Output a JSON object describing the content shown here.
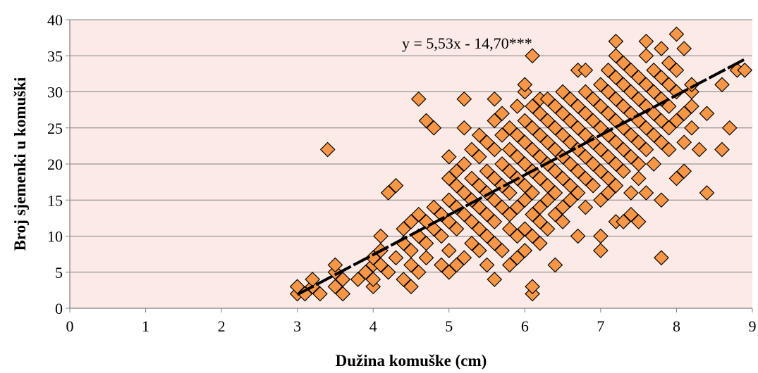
{
  "chart_data": {
    "type": "scatter",
    "title": "",
    "xlabel": "Dužina komuške (cm)",
    "ylabel": "Broj sjemenki u komuški",
    "xlim": [
      0,
      9
    ],
    "ylim": [
      0,
      40
    ],
    "xticks": [
      "0",
      "1",
      "2",
      "3",
      "4",
      "5",
      "6",
      "7",
      "8",
      "9"
    ],
    "yticks": [
      "0",
      "5",
      "10",
      "15",
      "20",
      "25",
      "30",
      "35",
      "40"
    ],
    "grid": "horizontal",
    "legend": "none",
    "colors": {
      "plot_background": "#fbeae6",
      "marker_fill": "#f79646",
      "marker_stroke": "#000000",
      "gridline": "#808080",
      "trendline": "#000000"
    },
    "trendline": {
      "equation": "y = 5,53x - 14,70***",
      "slope": 5.53,
      "intercept": -14.7,
      "x_range": [
        3.0,
        8.9
      ]
    },
    "series": [
      {
        "marker": "diamond",
        "points": [
          [
            3.0,
            2
          ],
          [
            3.0,
            3
          ],
          [
            3.1,
            2
          ],
          [
            3.2,
            3
          ],
          [
            3.2,
            4
          ],
          [
            3.3,
            2
          ],
          [
            3.4,
            22
          ],
          [
            3.5,
            3
          ],
          [
            3.5,
            5
          ],
          [
            3.5,
            6
          ],
          [
            3.6,
            2
          ],
          [
            3.6,
            4
          ],
          [
            3.8,
            4
          ],
          [
            3.9,
            5
          ],
          [
            4.0,
            3
          ],
          [
            4.0,
            4
          ],
          [
            4.0,
            6
          ],
          [
            4.0,
            7
          ],
          [
            4.1,
            8
          ],
          [
            4.1,
            10
          ],
          [
            4.1,
            6
          ],
          [
            4.2,
            5
          ],
          [
            4.2,
            16
          ],
          [
            4.3,
            17
          ],
          [
            4.3,
            7
          ],
          [
            4.4,
            4
          ],
          [
            4.4,
            9
          ],
          [
            4.4,
            11
          ],
          [
            4.5,
            3
          ],
          [
            4.5,
            6
          ],
          [
            4.5,
            8
          ],
          [
            4.5,
            12
          ],
          [
            4.6,
            5
          ],
          [
            4.6,
            10
          ],
          [
            4.6,
            29
          ],
          [
            4.6,
            13
          ],
          [
            4.7,
            26
          ],
          [
            4.7,
            7
          ],
          [
            4.7,
            9
          ],
          [
            4.7,
            12
          ],
          [
            4.8,
            25
          ],
          [
            4.8,
            11
          ],
          [
            4.8,
            14
          ],
          [
            4.9,
            6
          ],
          [
            4.9,
            10
          ],
          [
            4.9,
            13
          ],
          [
            5.0,
            5
          ],
          [
            5.0,
            8
          ],
          [
            5.0,
            12
          ],
          [
            5.0,
            15
          ],
          [
            5.0,
            18
          ],
          [
            5.0,
            21
          ],
          [
            5.1,
            6
          ],
          [
            5.1,
            11
          ],
          [
            5.1,
            14
          ],
          [
            5.1,
            17
          ],
          [
            5.1,
            19
          ],
          [
            5.2,
            7
          ],
          [
            5.2,
            13
          ],
          [
            5.2,
            16
          ],
          [
            5.2,
            20
          ],
          [
            5.2,
            25
          ],
          [
            5.2,
            29
          ],
          [
            5.3,
            9
          ],
          [
            5.3,
            12
          ],
          [
            5.3,
            15
          ],
          [
            5.3,
            18
          ],
          [
            5.3,
            22
          ],
          [
            5.4,
            8
          ],
          [
            5.4,
            11
          ],
          [
            5.4,
            14
          ],
          [
            5.4,
            17
          ],
          [
            5.4,
            21
          ],
          [
            5.4,
            24
          ],
          [
            5.5,
            6
          ],
          [
            5.5,
            10
          ],
          [
            5.5,
            13
          ],
          [
            5.5,
            16
          ],
          [
            5.5,
            19
          ],
          [
            5.5,
            23
          ],
          [
            5.6,
            4
          ],
          [
            5.6,
            9
          ],
          [
            5.6,
            12
          ],
          [
            5.6,
            15
          ],
          [
            5.6,
            18
          ],
          [
            5.6,
            22
          ],
          [
            5.6,
            26
          ],
          [
            5.6,
            29
          ],
          [
            5.7,
            8
          ],
          [
            5.7,
            14
          ],
          [
            5.7,
            17
          ],
          [
            5.7,
            20
          ],
          [
            5.7,
            24
          ],
          [
            5.7,
            27
          ],
          [
            5.8,
            6
          ],
          [
            5.8,
            11
          ],
          [
            5.8,
            13
          ],
          [
            5.8,
            16
          ],
          [
            5.8,
            19
          ],
          [
            5.8,
            22
          ],
          [
            5.8,
            25
          ],
          [
            5.9,
            7
          ],
          [
            5.9,
            10
          ],
          [
            5.9,
            14
          ],
          [
            5.9,
            18
          ],
          [
            5.9,
            21
          ],
          [
            5.9,
            24
          ],
          [
            5.9,
            28
          ],
          [
            6.0,
            8
          ],
          [
            6.0,
            11
          ],
          [
            6.0,
            15
          ],
          [
            6.0,
            17
          ],
          [
            6.0,
            20
          ],
          [
            6.0,
            23
          ],
          [
            6.0,
            26
          ],
          [
            6.0,
            30
          ],
          [
            6.0,
            31
          ],
          [
            6.1,
            2
          ],
          [
            6.1,
            3
          ],
          [
            6.1,
            10
          ],
          [
            6.1,
            13
          ],
          [
            6.1,
            16
          ],
          [
            6.1,
            19
          ],
          [
            6.1,
            22
          ],
          [
            6.1,
            25
          ],
          [
            6.1,
            28
          ],
          [
            6.1,
            35
          ],
          [
            6.2,
            9
          ],
          [
            6.2,
            12
          ],
          [
            6.2,
            14
          ],
          [
            6.2,
            18
          ],
          [
            6.2,
            21
          ],
          [
            6.2,
            24
          ],
          [
            6.2,
            27
          ],
          [
            6.2,
            29
          ],
          [
            6.3,
            11
          ],
          [
            6.3,
            15
          ],
          [
            6.3,
            17
          ],
          [
            6.3,
            20
          ],
          [
            6.3,
            23
          ],
          [
            6.3,
            26
          ],
          [
            6.3,
            29
          ],
          [
            6.4,
            6
          ],
          [
            6.4,
            13
          ],
          [
            6.4,
            16
          ],
          [
            6.4,
            19
          ],
          [
            6.4,
            22
          ],
          [
            6.4,
            25
          ],
          [
            6.4,
            28
          ],
          [
            6.5,
            12
          ],
          [
            6.5,
            14
          ],
          [
            6.5,
            18
          ],
          [
            6.5,
            21
          ],
          [
            6.5,
            24
          ],
          [
            6.5,
            27
          ],
          [
            6.5,
            30
          ],
          [
            6.6,
            15
          ],
          [
            6.6,
            17
          ],
          [
            6.6,
            20
          ],
          [
            6.6,
            23
          ],
          [
            6.6,
            26
          ],
          [
            6.6,
            29
          ],
          [
            6.7,
            10
          ],
          [
            6.7,
            16
          ],
          [
            6.7,
            19
          ],
          [
            6.7,
            22
          ],
          [
            6.7,
            25
          ],
          [
            6.7,
            28
          ],
          [
            6.7,
            33
          ],
          [
            6.8,
            14
          ],
          [
            6.8,
            18
          ],
          [
            6.8,
            21
          ],
          [
            6.8,
            24
          ],
          [
            6.8,
            27
          ],
          [
            6.8,
            30
          ],
          [
            6.8,
            33
          ],
          [
            6.9,
            17
          ],
          [
            6.9,
            20
          ],
          [
            6.9,
            23
          ],
          [
            6.9,
            26
          ],
          [
            6.9,
            29
          ],
          [
            7.0,
            8
          ],
          [
            7.0,
            10
          ],
          [
            7.0,
            15
          ],
          [
            7.0,
            19
          ],
          [
            7.0,
            22
          ],
          [
            7.0,
            25
          ],
          [
            7.0,
            28
          ],
          [
            7.0,
            31
          ],
          [
            7.1,
            16
          ],
          [
            7.1,
            18
          ],
          [
            7.1,
            21
          ],
          [
            7.1,
            24
          ],
          [
            7.1,
            27
          ],
          [
            7.1,
            30
          ],
          [
            7.1,
            33
          ],
          [
            7.2,
            12
          ],
          [
            7.2,
            17
          ],
          [
            7.2,
            20
          ],
          [
            7.2,
            23
          ],
          [
            7.2,
            26
          ],
          [
            7.2,
            29
          ],
          [
            7.2,
            32
          ],
          [
            7.2,
            35
          ],
          [
            7.2,
            37
          ],
          [
            7.3,
            12
          ],
          [
            7.3,
            19
          ],
          [
            7.3,
            22
          ],
          [
            7.3,
            25
          ],
          [
            7.3,
            28
          ],
          [
            7.3,
            31
          ],
          [
            7.3,
            34
          ],
          [
            7.4,
            13
          ],
          [
            7.4,
            16
          ],
          [
            7.4,
            21
          ],
          [
            7.4,
            24
          ],
          [
            7.4,
            27
          ],
          [
            7.4,
            30
          ],
          [
            7.4,
            33
          ],
          [
            7.5,
            12
          ],
          [
            7.5,
            18
          ],
          [
            7.5,
            20
          ],
          [
            7.5,
            23
          ],
          [
            7.5,
            26
          ],
          [
            7.5,
            29
          ],
          [
            7.5,
            32
          ],
          [
            7.6,
            16
          ],
          [
            7.6,
            22
          ],
          [
            7.6,
            25
          ],
          [
            7.6,
            28
          ],
          [
            7.6,
            31
          ],
          [
            7.6,
            35
          ],
          [
            7.6,
            37
          ],
          [
            7.7,
            20
          ],
          [
            7.7,
            24
          ],
          [
            7.7,
            27
          ],
          [
            7.7,
            30
          ],
          [
            7.7,
            33
          ],
          [
            7.8,
            7
          ],
          [
            7.8,
            15
          ],
          [
            7.8,
            23
          ],
          [
            7.8,
            26
          ],
          [
            7.8,
            29
          ],
          [
            7.8,
            32
          ],
          [
            7.8,
            36
          ],
          [
            7.9,
            22
          ],
          [
            7.9,
            25
          ],
          [
            7.9,
            28
          ],
          [
            7.9,
            31
          ],
          [
            7.9,
            34
          ],
          [
            8.0,
            18
          ],
          [
            8.0,
            26
          ],
          [
            8.0,
            30
          ],
          [
            8.0,
            33
          ],
          [
            8.0,
            38
          ],
          [
            8.1,
            19
          ],
          [
            8.1,
            23
          ],
          [
            8.1,
            27
          ],
          [
            8.1,
            36
          ],
          [
            8.2,
            25
          ],
          [
            8.2,
            28
          ],
          [
            8.2,
            30
          ],
          [
            8.2,
            31
          ],
          [
            8.3,
            22
          ],
          [
            8.4,
            16
          ],
          [
            8.4,
            27
          ],
          [
            8.6,
            22
          ],
          [
            8.6,
            31
          ],
          [
            8.7,
            25
          ],
          [
            8.8,
            33
          ],
          [
            8.9,
            33
          ]
        ]
      }
    ]
  }
}
